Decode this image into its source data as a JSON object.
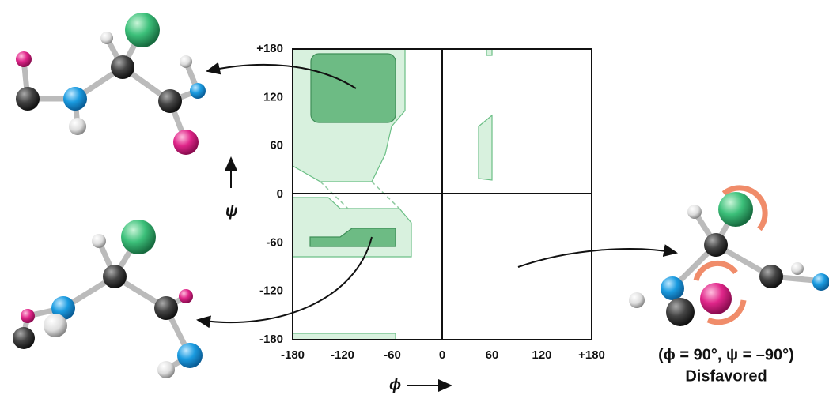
{
  "plot": {
    "x_label": "ϕ",
    "y_label": "ψ",
    "x_ticks": [
      "-180",
      "-120",
      "-60",
      "0",
      "60",
      "120",
      "+180"
    ],
    "y_ticks": [
      "+180",
      "120",
      "60",
      "0",
      "-60",
      "-120",
      "-180"
    ]
  },
  "caption": {
    "condition": "(ϕ = 90°, ψ = –90°)",
    "verdict": "Disfavored"
  }
}
